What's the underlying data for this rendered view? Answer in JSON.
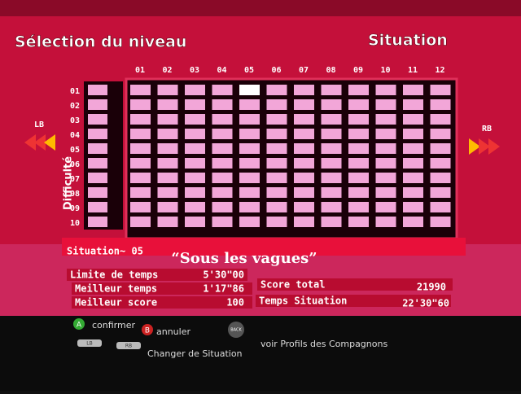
{
  "header": {
    "title": "Sélection du niveau",
    "mode": "Situation"
  },
  "grid": {
    "columns": [
      "01",
      "02",
      "03",
      "04",
      "05",
      "06",
      "07",
      "08",
      "09",
      "10",
      "11",
      "12"
    ],
    "rows": [
      "01",
      "02",
      "03",
      "04",
      "05",
      "06",
      "07",
      "08",
      "09",
      "10"
    ],
    "row_axis_label": "Difficulté"
  },
  "nav": {
    "left": "LB",
    "right": "RB"
  },
  "info": {
    "situation_label": "Situation~ 05",
    "name": "“Sous les vagues”",
    "stats": [
      {
        "label": "Limite de temps",
        "value": "5'30\"00"
      },
      {
        "label": "Meilleur temps",
        "value": "1'17\"86"
      },
      {
        "label": "Meilleur score",
        "value": "100"
      },
      {
        "label": "Score total",
        "value": "21990"
      },
      {
        "label": "Temps Situation",
        "value": "22'30\"60"
      }
    ]
  },
  "footer": {
    "a_key": "A",
    "confirm": "confirmer",
    "b_key": "B",
    "cancel": "annuler",
    "back_key": "BACK",
    "profiles": "voir Profils des Compagnons",
    "lb": "LB",
    "rb": "RB",
    "change": "Changer de Situation"
  }
}
